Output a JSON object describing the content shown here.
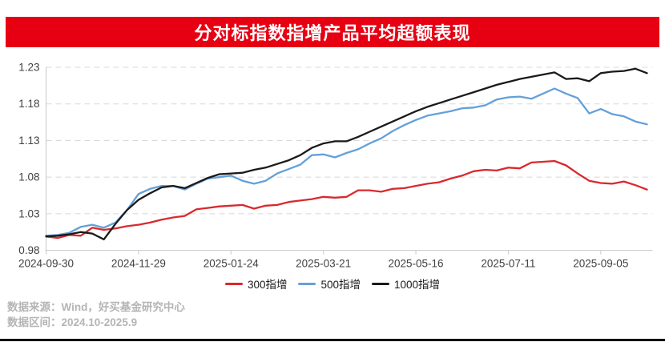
{
  "title": {
    "text": "分对标指数指增产品平均超额表现",
    "bar_color": "#e60012",
    "text_color": "#ffffff"
  },
  "chart_data": {
    "type": "line",
    "title": "分对标指数指增产品平均超额表现",
    "xlabel": "",
    "ylabel": "",
    "ylim": [
      0.98,
      1.23
    ],
    "grid": "horizontal-dashed",
    "legend_position": "bottom-center",
    "y_ticks": [
      "1.23",
      "1.18",
      "1.13",
      "1.08",
      "1.03",
      "0.98"
    ],
    "x_tick_labels": [
      "2024-09-30",
      "2024-11-29",
      "2025-01-24",
      "2025-03-21",
      "2025-05-16",
      "2025-07-11",
      "2025-09-05"
    ],
    "x_tick_indices": [
      0,
      8,
      16,
      24,
      32,
      40,
      48
    ],
    "x": [
      "2024-09-30",
      "2024-10-11",
      "2024-10-18",
      "2024-10-25",
      "2024-11-01",
      "2024-11-08",
      "2024-11-15",
      "2024-11-22",
      "2024-11-29",
      "2024-12-06",
      "2024-12-13",
      "2024-12-20",
      "2024-12-27",
      "2025-01-03",
      "2025-01-10",
      "2025-01-17",
      "2025-01-24",
      "2025-01-31",
      "2025-02-07",
      "2025-02-14",
      "2025-02-21",
      "2025-02-28",
      "2025-03-07",
      "2025-03-14",
      "2025-03-21",
      "2025-03-28",
      "2025-04-03",
      "2025-04-11",
      "2025-04-18",
      "2025-04-25",
      "2025-04-30",
      "2025-05-09",
      "2025-05-16",
      "2025-05-23",
      "2025-05-30",
      "2025-06-06",
      "2025-06-13",
      "2025-06-20",
      "2025-06-27",
      "2025-07-04",
      "2025-07-11",
      "2025-07-18",
      "2025-07-25",
      "2025-08-01",
      "2025-08-08",
      "2025-08-15",
      "2025-08-22",
      "2025-08-29",
      "2025-09-05",
      "2025-09-12",
      "2025-09-19",
      "2025-09-26",
      "2025-09-30"
    ],
    "series": [
      {
        "name": "300指增",
        "color": "#d9292e",
        "values": [
          0.999,
          0.997,
          1.001,
          1.0,
          1.011,
          1.008,
          1.01,
          1.013,
          1.015,
          1.018,
          1.022,
          1.025,
          1.027,
          1.036,
          1.038,
          1.04,
          1.041,
          1.042,
          1.037,
          1.041,
          1.042,
          1.046,
          1.048,
          1.05,
          1.053,
          1.052,
          1.053,
          1.062,
          1.062,
          1.06,
          1.064,
          1.065,
          1.068,
          1.071,
          1.073,
          1.078,
          1.082,
          1.088,
          1.09,
          1.089,
          1.093,
          1.092,
          1.1,
          1.101,
          1.102,
          1.096,
          1.085,
          1.075,
          1.072,
          1.071,
          1.074,
          1.069,
          1.063
        ]
      },
      {
        "name": "500指增",
        "color": "#64a0d9",
        "values": [
          1.0,
          1.001,
          1.004,
          1.012,
          1.015,
          1.011,
          1.018,
          1.035,
          1.057,
          1.064,
          1.068,
          1.068,
          1.063,
          1.071,
          1.078,
          1.08,
          1.082,
          1.075,
          1.071,
          1.075,
          1.085,
          1.091,
          1.097,
          1.11,
          1.111,
          1.107,
          1.113,
          1.118,
          1.126,
          1.133,
          1.143,
          1.151,
          1.158,
          1.164,
          1.167,
          1.17,
          1.174,
          1.175,
          1.178,
          1.186,
          1.189,
          1.19,
          1.187,
          1.194,
          1.201,
          1.194,
          1.188,
          1.167,
          1.173,
          1.166,
          1.163,
          1.156,
          1.152
        ]
      },
      {
        "name": "1000指增",
        "color": "#1a1a1a",
        "values": [
          0.999,
          1.0,
          1.002,
          1.005,
          1.003,
          0.995,
          1.016,
          1.035,
          1.049,
          1.058,
          1.066,
          1.068,
          1.065,
          1.072,
          1.079,
          1.084,
          1.085,
          1.086,
          1.09,
          1.093,
          1.098,
          1.103,
          1.11,
          1.12,
          1.126,
          1.129,
          1.129,
          1.135,
          1.142,
          1.149,
          1.156,
          1.163,
          1.17,
          1.176,
          1.181,
          1.186,
          1.191,
          1.196,
          1.201,
          1.206,
          1.21,
          1.214,
          1.217,
          1.22,
          1.223,
          1.214,
          1.215,
          1.211,
          1.222,
          1.224,
          1.225,
          1.228,
          1.222
        ]
      }
    ],
    "axis_color": "#c9c9c9",
    "grid_color": "#d8d8d8",
    "tick_label_color": "#404040"
  },
  "legend": {
    "items": [
      {
        "label": "300指增",
        "color": "#d9292e"
      },
      {
        "label": "500指增",
        "color": "#64a0d9"
      },
      {
        "label": "1000指增",
        "color": "#1a1a1a"
      }
    ]
  },
  "footer": {
    "source_line": "数据来源：Wind，好买基金研究中心",
    "range_line": "数据区间：2024.10-2025.9",
    "text_color": "#b5b5b5"
  }
}
